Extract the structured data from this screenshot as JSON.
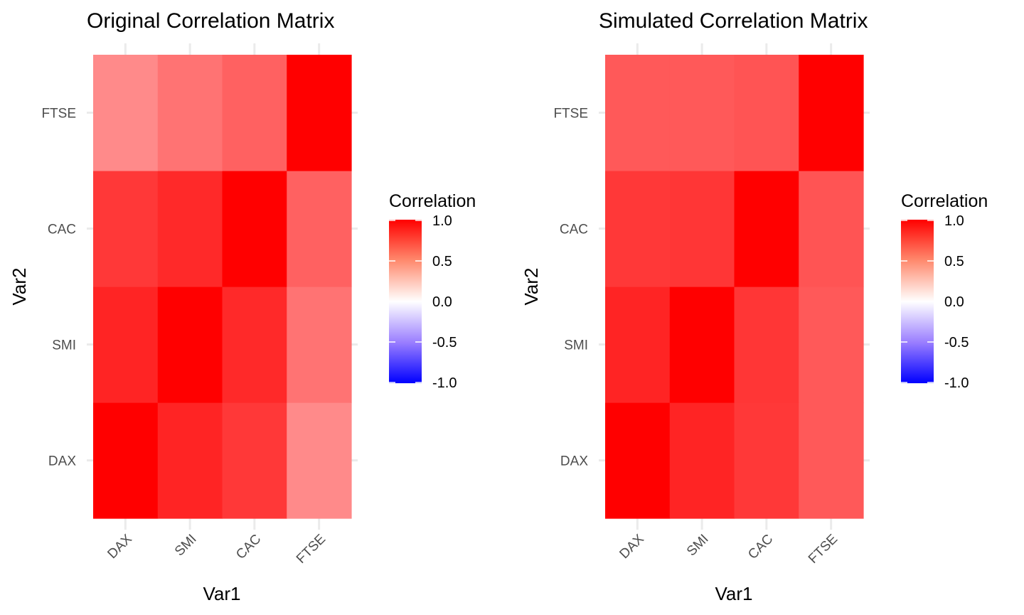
{
  "chart_data": [
    {
      "type": "heatmap",
      "title": "Original Correlation Matrix",
      "xlabel": "Var1",
      "ylabel": "Var2",
      "x_categories": [
        "DAX",
        "SMI",
        "CAC",
        "FTSE"
      ],
      "y_categories": [
        "DAX",
        "SMI",
        "CAC",
        "FTSE"
      ],
      "values": [
        [
          1.0,
          0.86,
          0.78,
          0.46
        ],
        [
          0.86,
          1.0,
          0.84,
          0.55
        ],
        [
          0.78,
          0.84,
          1.0,
          0.62
        ],
        [
          0.46,
          0.55,
          0.62,
          1.0
        ]
      ],
      "legend": {
        "title": "Correlation",
        "ticks": [
          "1.0",
          "0.5",
          "0.0",
          "-0.5",
          "-1.0"
        ],
        "range": [
          -1,
          1
        ],
        "colors": {
          "low": "#0000ff",
          "mid": "#ffffff",
          "high": "#ff0000"
        },
        "position": "right"
      }
    },
    {
      "type": "heatmap",
      "title": "Simulated Correlation Matrix",
      "xlabel": "Var1",
      "ylabel": "Var2",
      "x_categories": [
        "DAX",
        "SMI",
        "CAC",
        "FTSE"
      ],
      "y_categories": [
        "DAX",
        "SMI",
        "CAC",
        "FTSE"
      ],
      "values": [
        [
          1.0,
          0.86,
          0.78,
          0.65
        ],
        [
          0.86,
          1.0,
          0.79,
          0.65
        ],
        [
          0.78,
          0.79,
          1.0,
          0.67
        ],
        [
          0.65,
          0.65,
          0.67,
          1.0
        ]
      ],
      "legend": {
        "title": "Correlation",
        "ticks": [
          "1.0",
          "0.5",
          "0.0",
          "-0.5",
          "-1.0"
        ],
        "range": [
          -1,
          1
        ],
        "colors": {
          "low": "#0000ff",
          "mid": "#ffffff",
          "high": "#ff0000"
        },
        "position": "right"
      }
    }
  ]
}
